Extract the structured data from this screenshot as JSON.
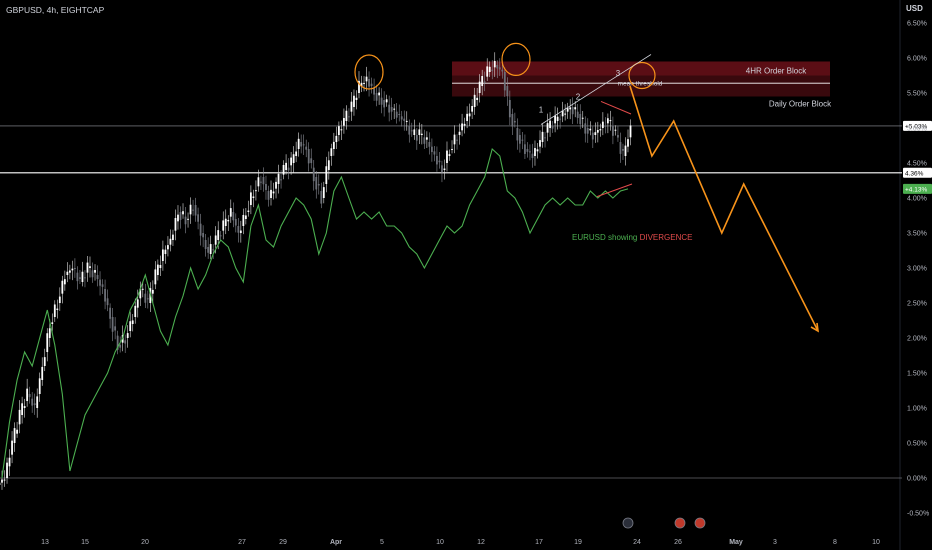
{
  "header": {
    "symbol_line": "GBPUSD, 4h, EIGHTCAP",
    "currency": "USD"
  },
  "chart_data": {
    "type": "candlestick",
    "y_axis_unit": "percent",
    "ylim": [
      -0.6,
      6.6
    ],
    "y_ticks": [
      "6.50%",
      "6.00%",
      "5.50%",
      "5.00%",
      "4.50%",
      "4.00%",
      "3.50%",
      "3.00%",
      "2.50%",
      "2.00%",
      "1.50%",
      "1.00%",
      "0.50%",
      "0.00%",
      "-0.50%"
    ],
    "x_ticks": [
      "13",
      "15",
      "20",
      "27",
      "29",
      "Apr",
      "5",
      "10",
      "12",
      "17",
      "19",
      "24",
      "26",
      "May",
      "3",
      "8",
      "10"
    ],
    "price_badges": [
      {
        "text": "+5.03%",
        "value": 5.03,
        "color": "#ffffff",
        "text_color": "#000000"
      },
      {
        "text": "4.36%",
        "value": 4.36,
        "color": "#ffffff",
        "text_color": "#000000"
      },
      {
        "text": "+4.13%",
        "value": 4.13,
        "color": "#4caf50",
        "text_color": "#ffffff"
      }
    ],
    "horizontal_lines": [
      5.03,
      4.36,
      0.0
    ],
    "zones": [
      {
        "label": "4HR Order Block",
        "from": 5.75,
        "to": 5.95,
        "color": "#5d0f16"
      },
      {
        "label": "Daily Order Block",
        "from": 5.45,
        "to": 5.95,
        "color": "#3c0a0e"
      }
    ],
    "zone_mid_label": "mean threshold",
    "wave_labels": [
      "1",
      "2",
      "3"
    ],
    "series": [
      {
        "name": "GBPUSD",
        "type": "candles",
        "color": "#ffffff",
        "close": [
          0.0,
          0.5,
          0.9,
          1.2,
          1.0,
          1.6,
          2.2,
          2.5,
          2.9,
          3.0,
          2.8,
          3.0,
          2.9,
          2.7,
          2.3,
          1.9,
          2.0,
          2.3,
          2.7,
          2.5,
          2.9,
          3.2,
          3.4,
          3.8,
          3.7,
          3.9,
          3.5,
          3.2,
          3.4,
          3.6,
          3.8,
          3.5,
          3.8,
          4.1,
          4.3,
          4.0,
          4.2,
          4.4,
          4.5,
          4.8,
          4.7,
          4.3,
          4.0,
          4.6,
          4.9,
          5.1,
          5.3,
          5.6,
          5.7,
          5.5,
          5.4,
          5.3,
          5.2,
          5.1,
          4.9,
          4.9,
          4.8,
          4.6,
          4.4,
          4.7,
          4.9,
          5.1,
          5.3,
          5.6,
          5.8,
          5.9,
          5.8,
          5.2,
          4.9,
          4.7,
          4.6,
          4.8,
          5.0,
          5.1,
          5.2,
          5.3,
          5.2,
          5.0,
          4.9,
          5.0,
          5.1,
          4.9,
          4.6,
          5.0
        ]
      },
      {
        "name": "EURUSD",
        "type": "line",
        "color": "#4caf50",
        "values": [
          0.0,
          0.8,
          1.4,
          1.8,
          1.6,
          2.0,
          2.4,
          1.9,
          1.2,
          0.1,
          0.5,
          0.9,
          1.1,
          1.3,
          1.5,
          1.8,
          2.0,
          2.4,
          2.6,
          2.9,
          2.5,
          2.1,
          1.9,
          2.3,
          2.6,
          3.0,
          2.7,
          2.9,
          3.2,
          3.4,
          3.3,
          3.0,
          2.8,
          3.6,
          3.9,
          3.4,
          3.3,
          3.6,
          3.8,
          4.0,
          3.9,
          3.7,
          3.2,
          3.5,
          4.1,
          4.3,
          4.0,
          3.7,
          3.8,
          3.7,
          3.8,
          3.6,
          3.6,
          3.5,
          3.3,
          3.2,
          3.0,
          3.2,
          3.4,
          3.6,
          3.5,
          3.6,
          3.9,
          4.1,
          4.3,
          4.7,
          4.6,
          4.1,
          4.0,
          3.8,
          3.5,
          3.7,
          3.9,
          4.0,
          3.9,
          4.0,
          3.9,
          3.9,
          4.1,
          4.0,
          4.1,
          4.0,
          4.1,
          4.13
        ]
      },
      {
        "name": "projection",
        "type": "line",
        "color": "#f7931a",
        "points": [
          [
            5.05,
            5.6
          ],
          [
            5.3,
            4.6
          ],
          [
            5.55,
            5.1
          ],
          [
            6.1,
            3.5
          ],
          [
            6.35,
            4.2
          ],
          [
            7.2,
            2.1
          ]
        ]
      }
    ],
    "annotations": {
      "divergence_text_prefix": "EURUSD showing ",
      "divergence_text_highlight": "DIVERGENCE",
      "divergence_color": "#e24b4b",
      "circles_color": "#f7931a"
    }
  }
}
